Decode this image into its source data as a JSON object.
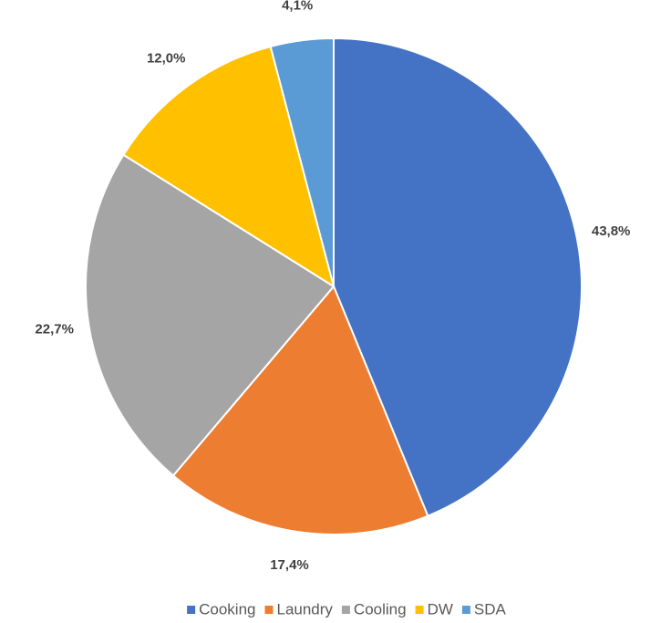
{
  "chart_data": {
    "type": "pie",
    "categories": [
      "Cooking",
      "Laundry",
      "Cooling",
      "DW",
      "SDA"
    ],
    "values": [
      43.8,
      17.4,
      22.7,
      12.0,
      4.1
    ],
    "value_labels": [
      "43,8%",
      "17,4%",
      "22,7%",
      "12,0%",
      "4,1%"
    ],
    "colors": [
      "#4472c4",
      "#ed7d31",
      "#a5a5a5",
      "#ffc000",
      "#5b9bd5"
    ],
    "legend": "bottom"
  }
}
